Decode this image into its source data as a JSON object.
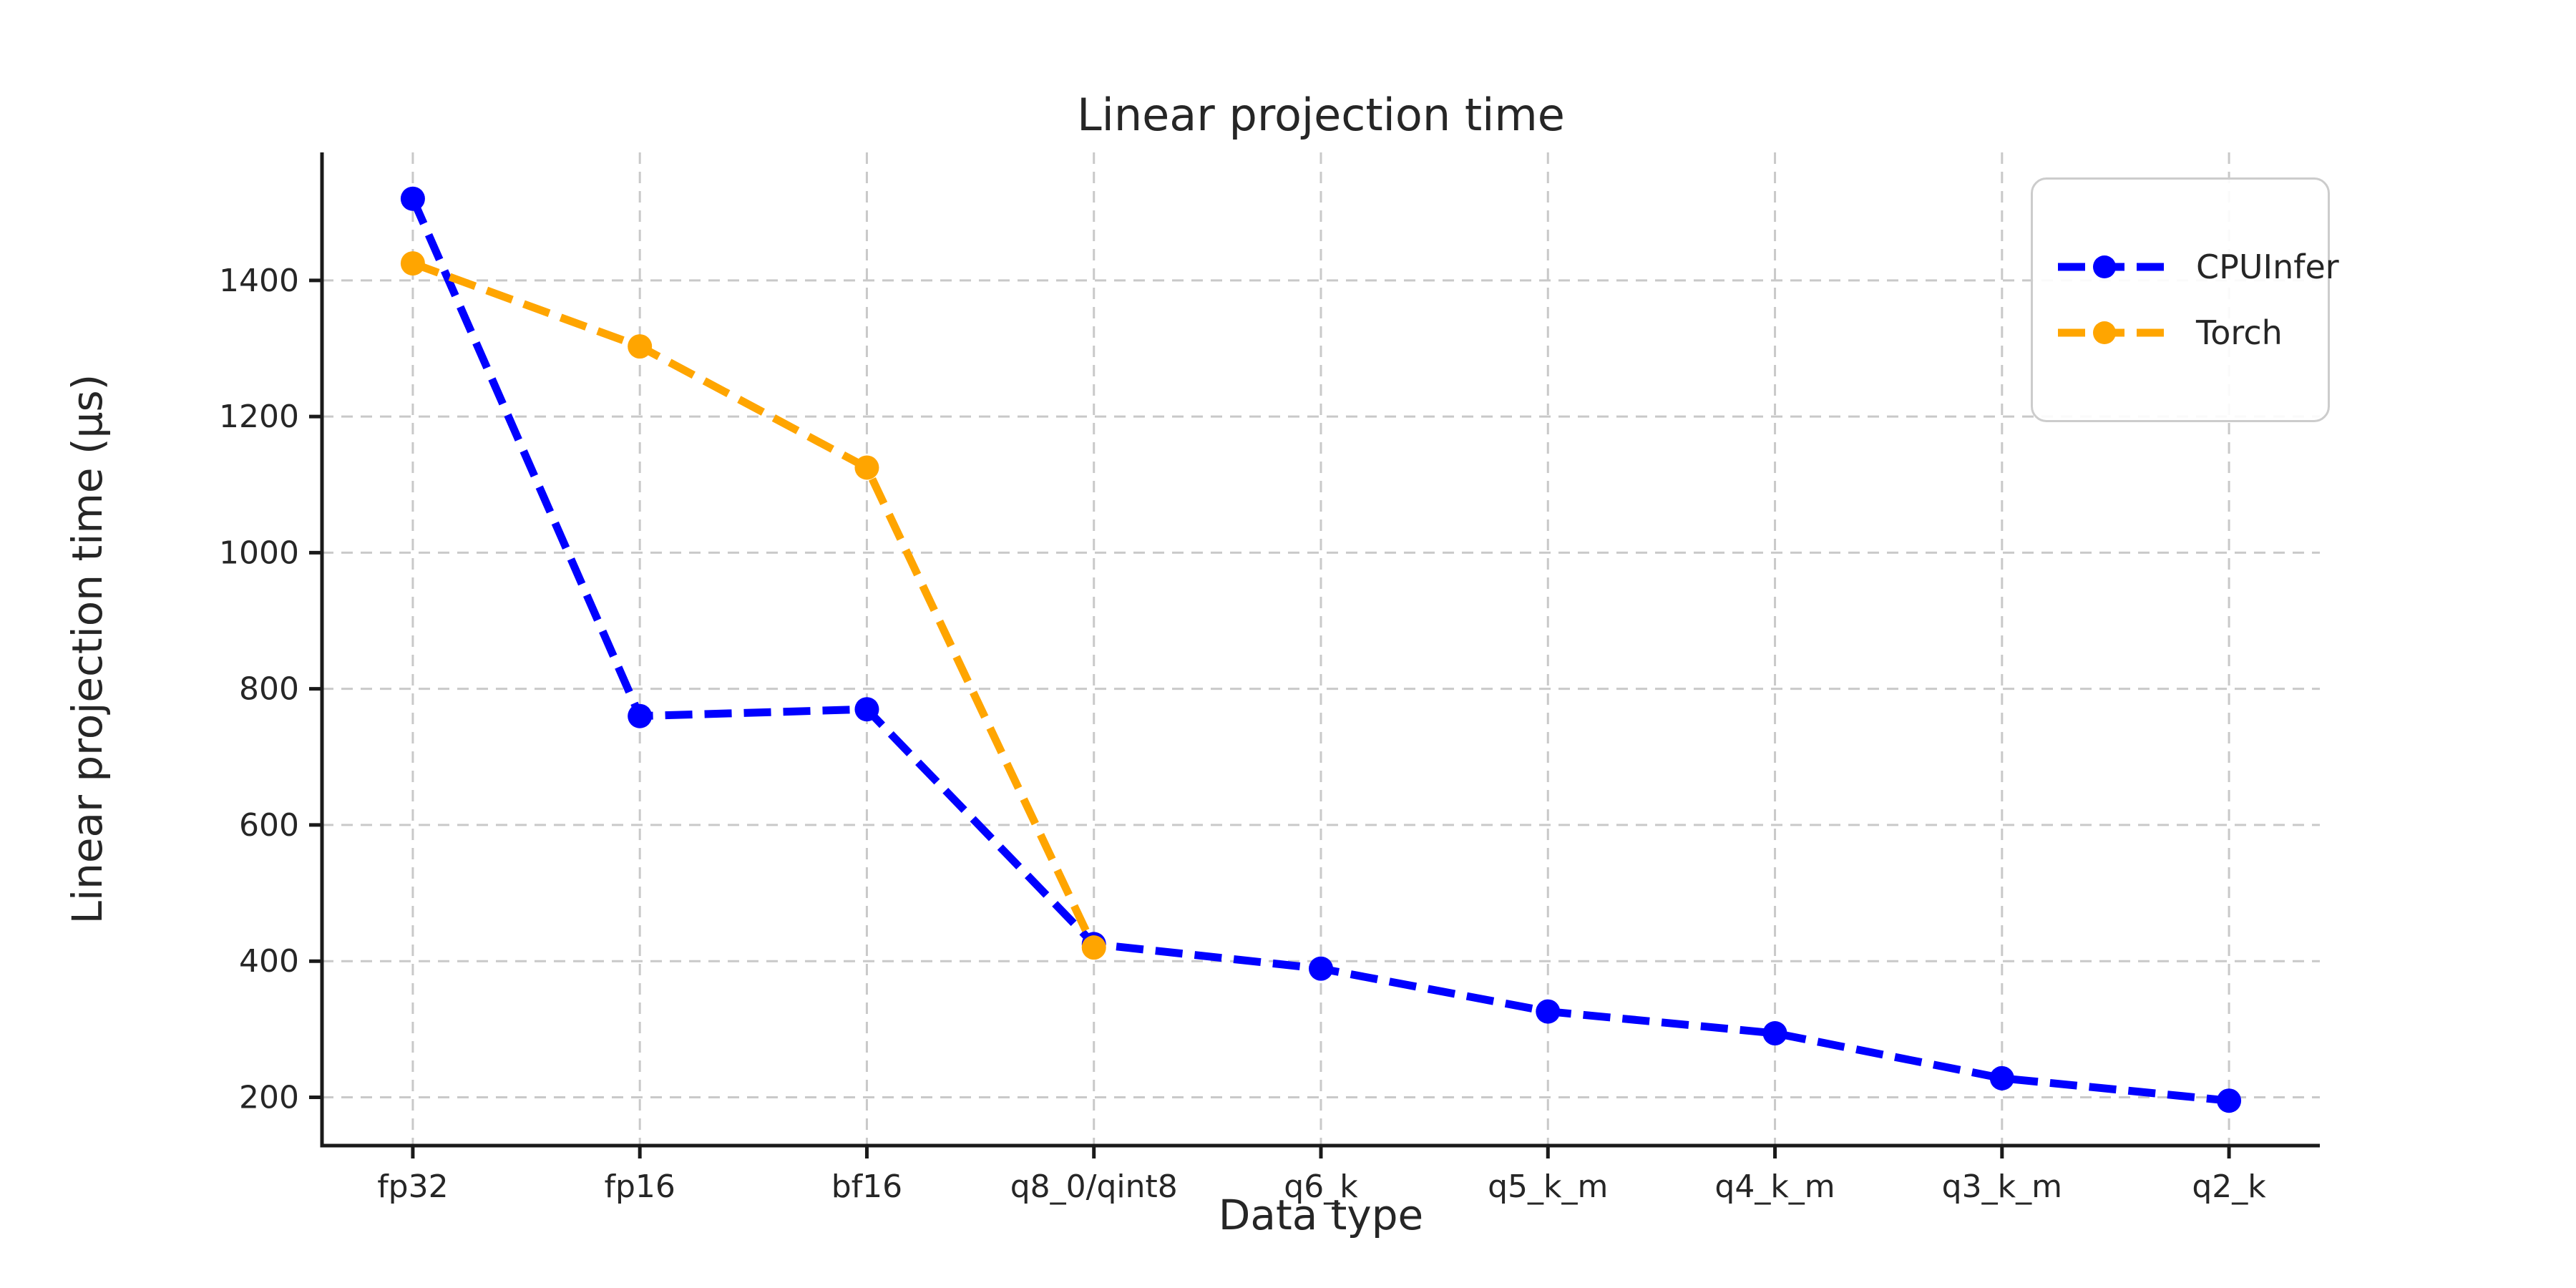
{
  "figure": {
    "title": "Linear projection time",
    "x_axis_label": "Data type",
    "y_axis_label": "Linear projection time (μs)"
  },
  "legend": {
    "position": "upper right",
    "entries": [
      {
        "label": "CPUInfer",
        "color": "#0000ff"
      },
      {
        "label": "Torch",
        "color": "#ffa500"
      }
    ]
  },
  "chart_data": {
    "type": "line",
    "title": "Linear projection time",
    "xlabel": "Data type",
    "ylabel": "Linear projection time (μs)",
    "categories": [
      "fp32",
      "fp16",
      "bf16",
      "q8_0/qint8",
      "q6_k",
      "q5_k_m",
      "q4_k_m",
      "q3_k_m",
      "q2_k"
    ],
    "series": [
      {
        "name": "CPUInfer",
        "color": "#0000ff",
        "linestyle": "dashed",
        "marker": "circle",
        "values": [
          1520,
          760,
          770,
          425,
          389,
          326,
          294,
          228,
          195
        ]
      },
      {
        "name": "Torch",
        "color": "#ffa500",
        "linestyle": "dashed",
        "marker": "circle",
        "values": [
          1425,
          1303,
          1125,
          420
        ]
      }
    ],
    "yticks": [
      200,
      400,
      600,
      800,
      1000,
      1200,
      1400
    ],
    "ylim": [
      129,
      1588
    ],
    "x_margin": 0.4,
    "grid": true,
    "legend_position": "upper right",
    "styles": {
      "text_color": "#262626",
      "grid_color": "#c9c9c9",
      "spine_color": "#1a1a1a",
      "background": "#ffffff"
    }
  }
}
